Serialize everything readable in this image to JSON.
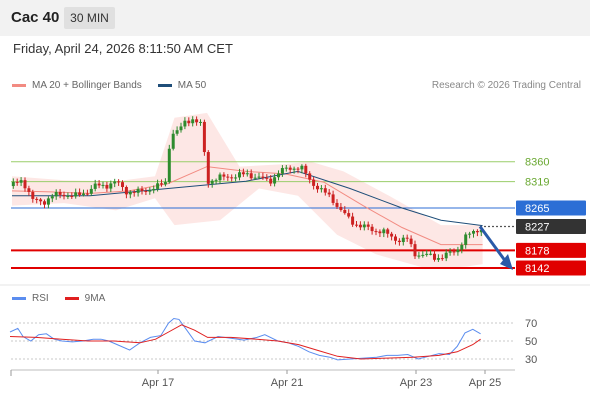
{
  "header": {
    "symbol": "Cac 40",
    "timeframe": "30 MIN"
  },
  "datetime": "Friday, April 24, 2026 8:11:50 AM CET",
  "legend_top": [
    {
      "label": "MA 20 + Bollinger Bands",
      "color": "#f28b82"
    },
    {
      "label": "MA 50",
      "color": "#1f4e79"
    }
  ],
  "credit": "Research © 2026 Trading Central",
  "legend_bottom": [
    {
      "label": "RSI",
      "color": "#5b8def"
    },
    {
      "label": "9MA",
      "color": "#e02020"
    }
  ],
  "colors": {
    "bull": "#2e8b2e",
    "bear": "#cc2222",
    "resistance": "#9acd6a",
    "support": "#e00000",
    "pivot": "#2c6ed5",
    "last": "#333333",
    "arrow": "#2a5aa8"
  },
  "chart_data": {
    "type": "candlestick",
    "x_ticks": [
      "Apr 17",
      "Apr 21",
      "Apr 23",
      "Apr 25"
    ],
    "levels": [
      {
        "value": 8360,
        "label": "8360",
        "kind": "resistance"
      },
      {
        "value": 8319,
        "label": "8319",
        "kind": "resistance"
      },
      {
        "value": 8265,
        "label": "8265",
        "kind": "pivot"
      },
      {
        "value": 8227,
        "label": "8227",
        "kind": "last"
      },
      {
        "value": 8178,
        "label": "8178",
        "kind": "support"
      },
      {
        "value": 8142,
        "label": "8142",
        "kind": "support"
      }
    ],
    "price_path": [
      [
        0,
        8310
      ],
      [
        8,
        8324
      ],
      [
        16,
        8280
      ],
      [
        24,
        8278
      ],
      [
        32,
        8290
      ],
      [
        40,
        8294
      ],
      [
        48,
        8288
      ],
      [
        56,
        8297
      ],
      [
        64,
        8309
      ],
      [
        72,
        8312
      ],
      [
        80,
        8318
      ],
      [
        88,
        8300
      ],
      [
        96,
        8296
      ],
      [
        104,
        8303
      ],
      [
        112,
        8308
      ],
      [
        118,
        8318
      ],
      [
        122,
        8418
      ],
      [
        128,
        8420
      ],
      [
        132,
        8440
      ],
      [
        138,
        8450
      ],
      [
        142,
        8440
      ],
      [
        146,
        8435
      ],
      [
        150,
        8320
      ],
      [
        158,
        8325
      ],
      [
        166,
        8330
      ],
      [
        174,
        8331
      ],
      [
        182,
        8335
      ],
      [
        190,
        8326
      ],
      [
        198,
        8320
      ],
      [
        206,
        8339
      ],
      [
        214,
        8348
      ],
      [
        222,
        8348
      ],
      [
        230,
        8320
      ],
      [
        238,
        8300
      ],
      [
        246,
        8286
      ],
      [
        252,
        8262
      ],
      [
        260,
        8240
      ],
      [
        268,
        8228
      ],
      [
        276,
        8221
      ],
      [
        284,
        8218
      ],
      [
        292,
        8205
      ],
      [
        298,
        8200
      ],
      [
        304,
        8200
      ],
      [
        310,
        8172
      ],
      [
        318,
        8168
      ],
      [
        326,
        8163
      ],
      [
        334,
        8168
      ],
      [
        342,
        8178
      ],
      [
        348,
        8204
      ],
      [
        356,
        8216
      ],
      [
        362,
        8227
      ]
    ],
    "ma20": [
      [
        0,
        8300
      ],
      [
        30,
        8298
      ],
      [
        60,
        8295
      ],
      [
        90,
        8300
      ],
      [
        120,
        8315
      ],
      [
        150,
        8350
      ],
      [
        180,
        8340
      ],
      [
        210,
        8335
      ],
      [
        240,
        8318
      ],
      [
        270,
        8270
      ],
      [
        300,
        8225
      ],
      [
        330,
        8190
      ],
      [
        362,
        8190
      ]
    ],
    "ma50": [
      [
        0,
        8290
      ],
      [
        60,
        8290
      ],
      [
        120,
        8305
      ],
      [
        180,
        8320
      ],
      [
        220,
        8340
      ],
      [
        260,
        8305
      ],
      [
        300,
        8265
      ],
      [
        330,
        8240
      ],
      [
        362,
        8229
      ]
    ],
    "bb_upper": [
      [
        0,
        8330
      ],
      [
        40,
        8322
      ],
      [
        80,
        8320
      ],
      [
        110,
        8330
      ],
      [
        125,
        8450
      ],
      [
        150,
        8460
      ],
      [
        175,
        8350
      ],
      [
        210,
        8355
      ],
      [
        230,
        8360
      ],
      [
        255,
        8340
      ],
      [
        290,
        8290
      ],
      [
        330,
        8230
      ],
      [
        362,
        8230
      ]
    ],
    "bb_lower": [
      [
        0,
        8270
      ],
      [
        40,
        8275
      ],
      [
        80,
        8260
      ],
      [
        110,
        8285
      ],
      [
        125,
        8230
      ],
      [
        160,
        8240
      ],
      [
        190,
        8305
      ],
      [
        220,
        8290
      ],
      [
        250,
        8210
      ],
      [
        280,
        8170
      ],
      [
        320,
        8140
      ],
      [
        350,
        8145
      ],
      [
        362,
        8150
      ]
    ],
    "forecast": {
      "from": 8227,
      "to": 8142
    },
    "rsi": {
      "ticks": [
        "70",
        "50",
        "30"
      ],
      "rsi_series": [
        [
          0,
          60
        ],
        [
          6,
          64
        ],
        [
          10,
          55
        ],
        [
          16,
          50
        ],
        [
          22,
          57
        ],
        [
          28,
          58
        ],
        [
          34,
          52
        ],
        [
          40,
          50
        ],
        [
          48,
          49
        ],
        [
          56,
          50
        ],
        [
          64,
          52
        ],
        [
          70,
          52
        ],
        [
          76,
          50
        ],
        [
          84,
          45
        ],
        [
          92,
          40
        ],
        [
          100,
          48
        ],
        [
          108,
          54
        ],
        [
          116,
          56
        ],
        [
          122,
          70
        ],
        [
          126,
          75
        ],
        [
          130,
          74
        ],
        [
          136,
          62
        ],
        [
          142,
          50
        ],
        [
          150,
          48
        ],
        [
          160,
          55
        ],
        [
          170,
          53
        ],
        [
          180,
          51
        ],
        [
          190,
          54
        ],
        [
          196,
          57
        ],
        [
          206,
          50
        ],
        [
          214,
          48
        ],
        [
          222,
          44
        ],
        [
          230,
          38
        ],
        [
          238,
          34
        ],
        [
          246,
          32
        ],
        [
          252,
          29
        ],
        [
          262,
          30
        ],
        [
          272,
          31
        ],
        [
          282,
          32
        ],
        [
          290,
          34
        ],
        [
          298,
          34
        ],
        [
          306,
          35
        ],
        [
          314,
          30
        ],
        [
          322,
          33
        ],
        [
          330,
          36
        ],
        [
          338,
          35
        ],
        [
          344,
          44
        ],
        [
          350,
          59
        ],
        [
          356,
          63
        ],
        [
          362,
          58
        ]
      ],
      "ma9_series": [
        [
          0,
          55
        ],
        [
          20,
          54
        ],
        [
          40,
          52
        ],
        [
          60,
          50
        ],
        [
          80,
          50
        ],
        [
          100,
          48
        ],
        [
          112,
          52
        ],
        [
          122,
          60
        ],
        [
          132,
          68
        ],
        [
          142,
          62
        ],
        [
          152,
          54
        ],
        [
          170,
          54
        ],
        [
          190,
          52
        ],
        [
          206,
          50
        ],
        [
          222,
          46
        ],
        [
          238,
          39
        ],
        [
          252,
          33
        ],
        [
          270,
          30
        ],
        [
          290,
          31
        ],
        [
          310,
          32
        ],
        [
          330,
          34
        ],
        [
          344,
          38
        ],
        [
          356,
          46
        ],
        [
          362,
          52
        ]
      ],
      "range": [
        10,
        90
      ]
    }
  }
}
